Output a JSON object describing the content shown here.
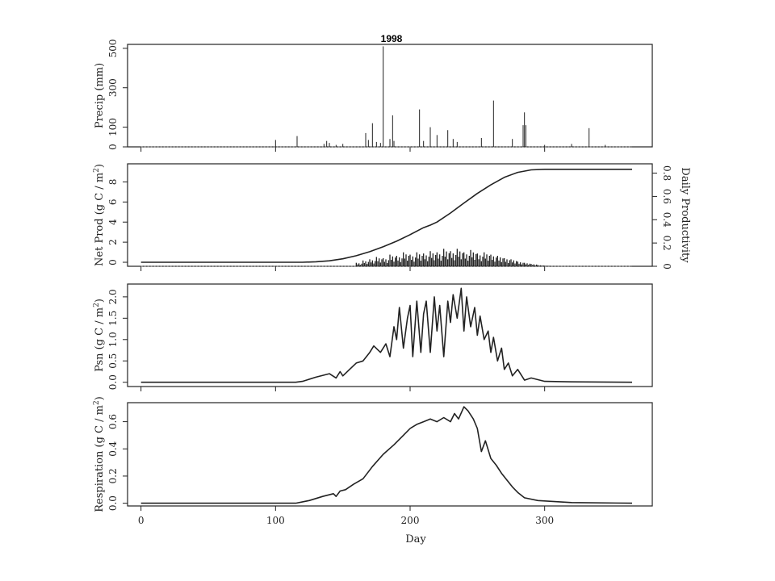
{
  "chart_data": [
    {
      "id": "precip",
      "type": "bar",
      "title": "1998",
      "ylabel": "Precip (mm)",
      "ylim": [
        0,
        520
      ],
      "yticks": [
        0,
        100,
        300,
        500
      ],
      "xlim": [
        -10,
        380
      ],
      "xticks": [
        0,
        100,
        200,
        300
      ],
      "x": [
        100,
        116,
        136,
        138,
        140,
        145,
        150,
        167,
        169,
        172,
        175,
        178,
        180,
        185,
        187,
        188,
        207,
        210,
        215,
        220,
        228,
        232,
        235,
        253,
        262,
        276,
        284,
        285,
        286,
        300,
        320,
        333,
        345
      ],
      "values": [
        35,
        55,
        15,
        30,
        20,
        10,
        15,
        70,
        35,
        120,
        25,
        20,
        510,
        40,
        160,
        30,
        190,
        30,
        100,
        60,
        85,
        40,
        25,
        45,
        235,
        40,
        110,
        175,
        110,
        10,
        15,
        95,
        10
      ]
    },
    {
      "id": "netprod",
      "type": "line",
      "ylabel": "Net Prod (g C / m²)",
      "ylim": [
        -0.4,
        9.8
      ],
      "yticks": [
        0,
        2,
        4,
        6,
        8
      ],
      "xlim": [
        -10,
        380
      ],
      "xticks": [
        0,
        100,
        200,
        300
      ],
      "series": [
        {
          "x": [
            0,
            120,
            130,
            140,
            150,
            160,
            170,
            180,
            190,
            200,
            210,
            215,
            220,
            230,
            240,
            250,
            260,
            270,
            280,
            290,
            300,
            365
          ],
          "values": [
            0,
            0,
            0.05,
            0.15,
            0.35,
            0.65,
            1.05,
            1.55,
            2.1,
            2.75,
            3.45,
            3.7,
            4.0,
            4.9,
            5.9,
            6.85,
            7.7,
            8.45,
            8.95,
            9.2,
            9.25,
            9.25
          ]
        }
      ],
      "secondary_axis": {
        "ylabel": "Daily Productivity",
        "ylim": [
          0,
          0.88
        ],
        "yticks": [
          0,
          0.2,
          0.4,
          0.6,
          0.8
        ],
        "yticklabels": [
          "0",
          "0.2",
          "0.4",
          "0.6",
          "0.8"
        ],
        "type": "bar",
        "x": [
          160,
          165,
          170,
          175,
          180,
          185,
          190,
          195,
          200,
          205,
          210,
          215,
          220,
          225,
          230,
          235,
          240,
          245,
          250,
          255,
          260,
          265,
          270,
          275,
          280,
          285,
          290,
          295,
          300
        ],
        "values": [
          0.03,
          0.05,
          0.06,
          0.08,
          0.07,
          0.1,
          0.09,
          0.12,
          0.1,
          0.12,
          0.11,
          0.13,
          0.12,
          0.15,
          0.13,
          0.15,
          0.12,
          0.14,
          0.11,
          0.12,
          0.1,
          0.09,
          0.07,
          0.06,
          0.04,
          0.03,
          0.02,
          0.01,
          0.005
        ]
      }
    },
    {
      "id": "psn",
      "type": "line",
      "ylabel": "Psn (g C / m²)",
      "ylim": [
        -0.1,
        2.3
      ],
      "yticks": [
        0,
        0.5,
        1,
        1.5,
        2
      ],
      "yticklabels": [
        "0.0",
        "0.5",
        "1.0",
        "1.5",
        "2.0"
      ],
      "xlim": [
        -10,
        380
      ],
      "xticks": [
        0,
        100,
        200,
        300
      ],
      "series": [
        {
          "x": [
            0,
            115,
            120,
            130,
            140,
            145,
            148,
            150,
            155,
            160,
            165,
            170,
            173,
            178,
            182,
            185,
            188,
            190,
            192,
            195,
            198,
            200,
            202,
            205,
            208,
            210,
            212,
            215,
            218,
            220,
            222,
            225,
            228,
            230,
            232,
            235,
            238,
            240,
            242,
            245,
            248,
            250,
            252,
            255,
            258,
            260,
            262,
            265,
            268,
            270,
            273,
            276,
            280,
            285,
            290,
            300,
            320,
            365
          ],
          "values": [
            0,
            0,
            0.02,
            0.12,
            0.2,
            0.1,
            0.25,
            0.15,
            0.3,
            0.45,
            0.5,
            0.7,
            0.85,
            0.7,
            0.9,
            0.6,
            1.3,
            1.0,
            1.75,
            0.8,
            1.5,
            1.8,
            0.6,
            1.9,
            0.7,
            1.6,
            1.9,
            0.7,
            2.0,
            1.2,
            1.8,
            0.6,
            1.9,
            1.4,
            2.05,
            1.5,
            2.2,
            1.2,
            2.0,
            1.3,
            1.75,
            1.1,
            1.55,
            1.0,
            1.2,
            0.7,
            1.05,
            0.5,
            0.8,
            0.3,
            0.45,
            0.15,
            0.3,
            0.05,
            0.1,
            0.02,
            0.01,
            0
          ]
        }
      ]
    },
    {
      "id": "resp",
      "type": "line",
      "ylabel": "Respiration (g C / m²)",
      "ylim": [
        -0.02,
        0.74
      ],
      "yticks": [
        0,
        0.2,
        0.4,
        0.6
      ],
      "yticklabels": [
        "0.0",
        "0.2",
        "0.4",
        "0.6"
      ],
      "xlim": [
        -10,
        380
      ],
      "xticks": [
        0,
        100,
        200,
        300
      ],
      "xticklabels": [
        "0",
        "100",
        "200",
        "300"
      ],
      "xlabel": "Day",
      "series": [
        {
          "x": [
            0,
            115,
            125,
            135,
            143,
            145,
            148,
            152,
            158,
            165,
            172,
            180,
            188,
            195,
            200,
            205,
            210,
            215,
            220,
            225,
            230,
            233,
            236,
            240,
            243,
            247,
            250,
            253,
            256,
            260,
            264,
            268,
            272,
            276,
            280,
            285,
            295,
            320,
            365
          ],
          "values": [
            0,
            0,
            0.02,
            0.05,
            0.07,
            0.05,
            0.09,
            0.1,
            0.14,
            0.18,
            0.27,
            0.36,
            0.43,
            0.5,
            0.55,
            0.58,
            0.6,
            0.62,
            0.6,
            0.63,
            0.6,
            0.66,
            0.62,
            0.71,
            0.68,
            0.62,
            0.55,
            0.38,
            0.46,
            0.33,
            0.28,
            0.22,
            0.17,
            0.12,
            0.08,
            0.04,
            0.02,
            0.005,
            0
          ]
        }
      ]
    }
  ]
}
